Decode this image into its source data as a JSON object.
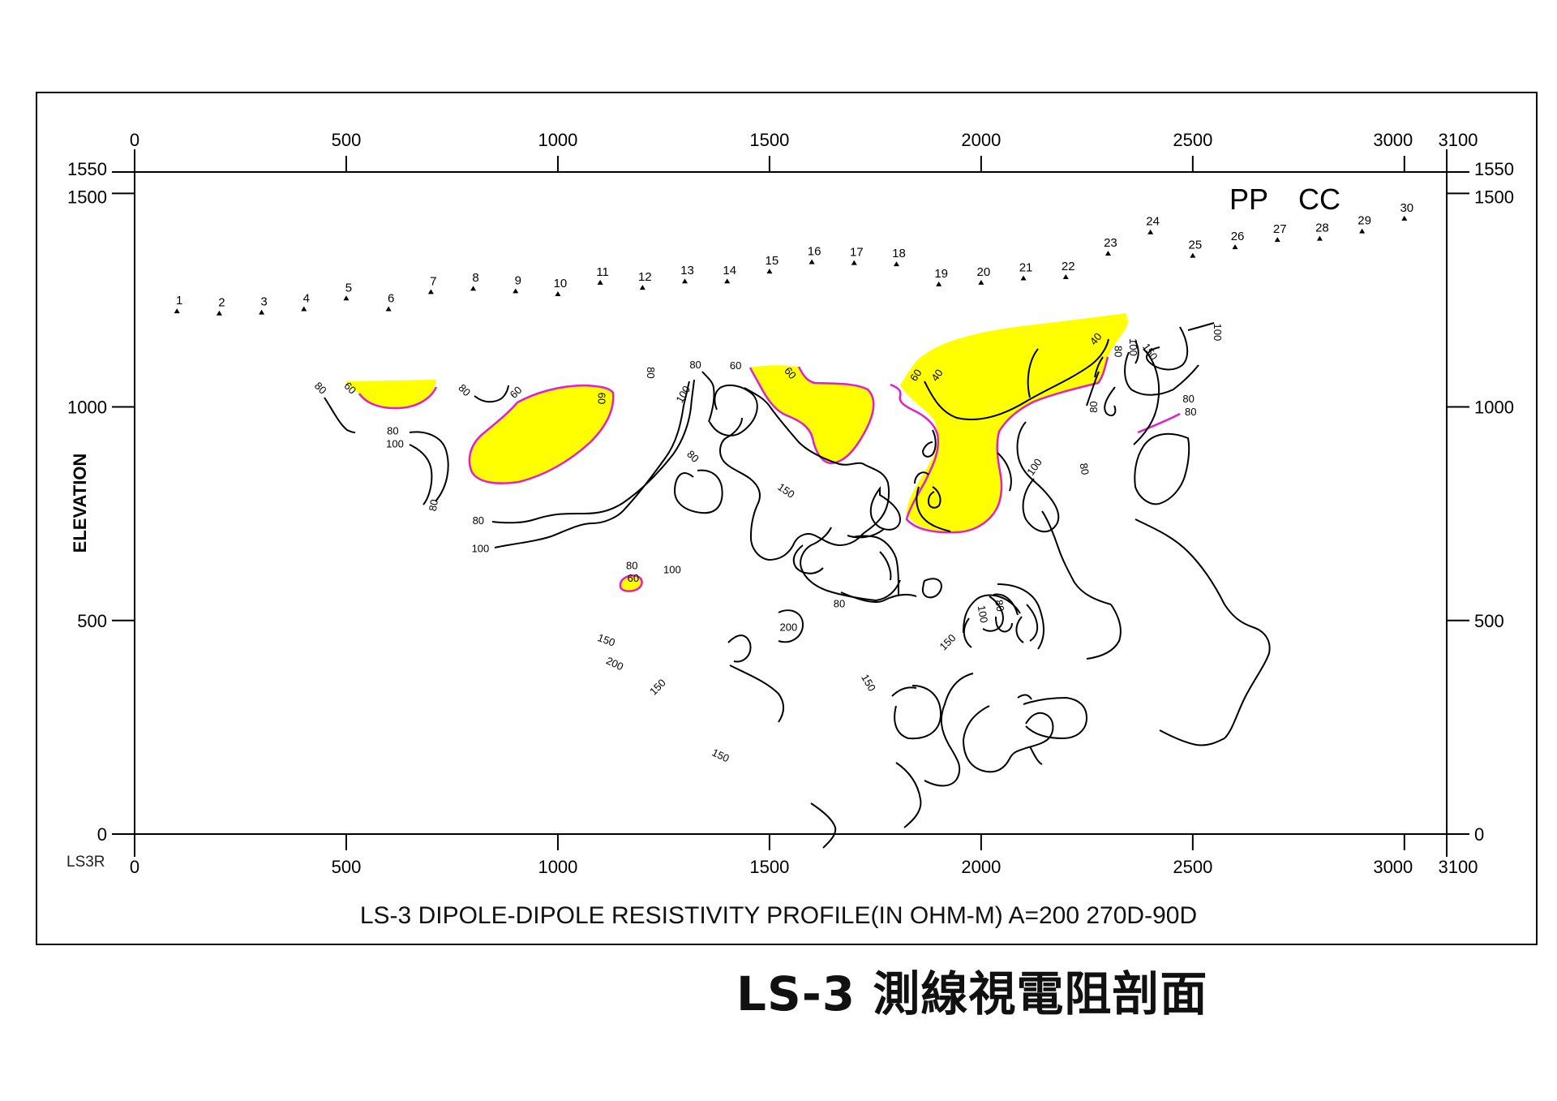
{
  "page_title": "LS-3 測線視電阻剖面",
  "colors": {
    "anomaly_fill": "#ffff00",
    "anomaly_outline": "#e020c8",
    "contour": "#000000"
  },
  "chart_data": {
    "type": "contour",
    "title": "LS-3  DIPOLE-DIPOLE  RESISTIVITY PROFILE(IN  OHM-M)  A=200  270D-90D",
    "ylabel": "ELEVATION",
    "line_id": "LS3R",
    "xlim": [
      0,
      3100
    ],
    "ylim": [
      0,
      1550
    ],
    "x_ticks": [
      "0",
      "500",
      "1000",
      "1500",
      "2000",
      "2500",
      "3000",
      "3100"
    ],
    "x_tick_values": [
      0,
      500,
      1000,
      1500,
      2000,
      2500,
      3000,
      3100
    ],
    "y_ticks_left": [
      "1550",
      "1500",
      "1000",
      "500",
      "0"
    ],
    "y_ticks_right": [
      "1550",
      "1500",
      "1000",
      "500",
      "0"
    ],
    "y_tick_values": [
      1550,
      1500,
      1000,
      500,
      0
    ],
    "annotations": [
      "PP",
      "CC"
    ],
    "stations": [
      {
        "n": "1",
        "x": 100,
        "y": 1225
      },
      {
        "n": "2",
        "x": 200,
        "y": 1220
      },
      {
        "n": "3",
        "x": 300,
        "y": 1222
      },
      {
        "n": "4",
        "x": 400,
        "y": 1230
      },
      {
        "n": "5",
        "x": 500,
        "y": 1255
      },
      {
        "n": "6",
        "x": 600,
        "y": 1230
      },
      {
        "n": "7",
        "x": 700,
        "y": 1270
      },
      {
        "n": "8",
        "x": 800,
        "y": 1278
      },
      {
        "n": "9",
        "x": 900,
        "y": 1272
      },
      {
        "n": "10",
        "x": 1000,
        "y": 1265
      },
      {
        "n": "11",
        "x": 1100,
        "y": 1292
      },
      {
        "n": "12",
        "x": 1200,
        "y": 1280
      },
      {
        "n": "13",
        "x": 1300,
        "y": 1295
      },
      {
        "n": "14",
        "x": 1400,
        "y": 1295
      },
      {
        "n": "15",
        "x": 1500,
        "y": 1318
      },
      {
        "n": "16",
        "x": 1600,
        "y": 1340
      },
      {
        "n": "17",
        "x": 1700,
        "y": 1338
      },
      {
        "n": "18",
        "x": 1800,
        "y": 1335
      },
      {
        "n": "19",
        "x": 1900,
        "y": 1288
      },
      {
        "n": "20",
        "x": 2000,
        "y": 1292
      },
      {
        "n": "21",
        "x": 2100,
        "y": 1302
      },
      {
        "n": "22",
        "x": 2200,
        "y": 1305
      },
      {
        "n": "23",
        "x": 2300,
        "y": 1360
      },
      {
        "n": "24",
        "x": 2400,
        "y": 1410
      },
      {
        "n": "25",
        "x": 2500,
        "y": 1355
      },
      {
        "n": "26",
        "x": 2600,
        "y": 1375
      },
      {
        "n": "27",
        "x": 2700,
        "y": 1392
      },
      {
        "n": "28",
        "x": 2800,
        "y": 1395
      },
      {
        "n": "29",
        "x": 2900,
        "y": 1412
      },
      {
        "n": "30",
        "x": 3000,
        "y": 1442
      }
    ],
    "contour_labels": [
      {
        "t": "80",
        "x": 440,
        "y": 1045,
        "r": 45
      },
      {
        "t": "60",
        "x": 510,
        "y": 1045,
        "r": 45
      },
      {
        "t": "80",
        "x": 610,
        "y": 945,
        "r": 0
      },
      {
        "t": "100",
        "x": 615,
        "y": 915,
        "r": 0
      },
      {
        "t": "80",
        "x": 705,
        "y": 770,
        "r": -80
      },
      {
        "t": "80",
        "x": 780,
        "y": 1040,
        "r": 45
      },
      {
        "t": "60",
        "x": 900,
        "y": 1035,
        "r": -45
      },
      {
        "t": "60",
        "x": 1105,
        "y": 1020,
        "r": 90
      },
      {
        "t": "80",
        "x": 812,
        "y": 735,
        "r": 0
      },
      {
        "t": "100",
        "x": 817,
        "y": 670,
        "r": 0
      },
      {
        "t": "80",
        "x": 1220,
        "y": 1080,
        "r": 90
      },
      {
        "t": "80",
        "x": 1325,
        "y": 1100,
        "r": 0
      },
      {
        "t": "60",
        "x": 1420,
        "y": 1098,
        "r": 0
      },
      {
        "t": "100",
        "x": 1295,
        "y": 1030,
        "r": -60
      },
      {
        "t": "80",
        "x": 1320,
        "y": 885,
        "r": 45
      },
      {
        "t": "60",
        "x": 1550,
        "y": 1080,
        "r": 50
      },
      {
        "t": "150",
        "x": 1540,
        "y": 805,
        "r": 35
      },
      {
        "t": "80",
        "x": 1175,
        "y": 630,
        "r": 0
      },
      {
        "t": "60",
        "x": 1178,
        "y": 600,
        "r": 0
      },
      {
        "t": "100",
        "x": 1270,
        "y": 620,
        "r": 0
      },
      {
        "t": "80",
        "x": 1665,
        "y": 540,
        "r": 0
      },
      {
        "t": "200",
        "x": 1545,
        "y": 485,
        "r": 0
      },
      {
        "t": "150",
        "x": 1115,
        "y": 455,
        "r": 20
      },
      {
        "t": "200",
        "x": 1135,
        "y": 400,
        "r": 25
      },
      {
        "t": "150",
        "x": 1235,
        "y": 345,
        "r": -45
      },
      {
        "t": "150",
        "x": 1735,
        "y": 355,
        "r": 60
      },
      {
        "t": "150",
        "x": 1385,
        "y": 185,
        "r": 25
      },
      {
        "t": "60",
        "x": 1845,
        "y": 1075,
        "r": -55
      },
      {
        "t": "40",
        "x": 1895,
        "y": 1075,
        "r": -55
      },
      {
        "t": "40",
        "x": 2270,
        "y": 1160,
        "r": -50
      },
      {
        "t": "80",
        "x": 2325,
        "y": 1130,
        "r": 90
      },
      {
        "t": "100",
        "x": 2360,
        "y": 1140,
        "r": 90
      },
      {
        "t": "150",
        "x": 2400,
        "y": 1130,
        "r": 55
      },
      {
        "t": "100",
        "x": 2560,
        "y": 1175,
        "r": 90
      },
      {
        "t": "80",
        "x": 2265,
        "y": 1000,
        "r": -90
      },
      {
        "t": "80",
        "x": 2490,
        "y": 1020,
        "r": 0
      },
      {
        "t": "80",
        "x": 2495,
        "y": 990,
        "r": 0
      },
      {
        "t": "100",
        "x": 2125,
        "y": 860,
        "r": -55
      },
      {
        "t": "80",
        "x": 2245,
        "y": 855,
        "r": 80
      },
      {
        "t": "80",
        "x": 2045,
        "y": 535,
        "r": 80
      },
      {
        "t": "100",
        "x": 2005,
        "y": 515,
        "r": 80
      },
      {
        "t": "150",
        "x": 1920,
        "y": 450,
        "r": -45
      }
    ]
  }
}
